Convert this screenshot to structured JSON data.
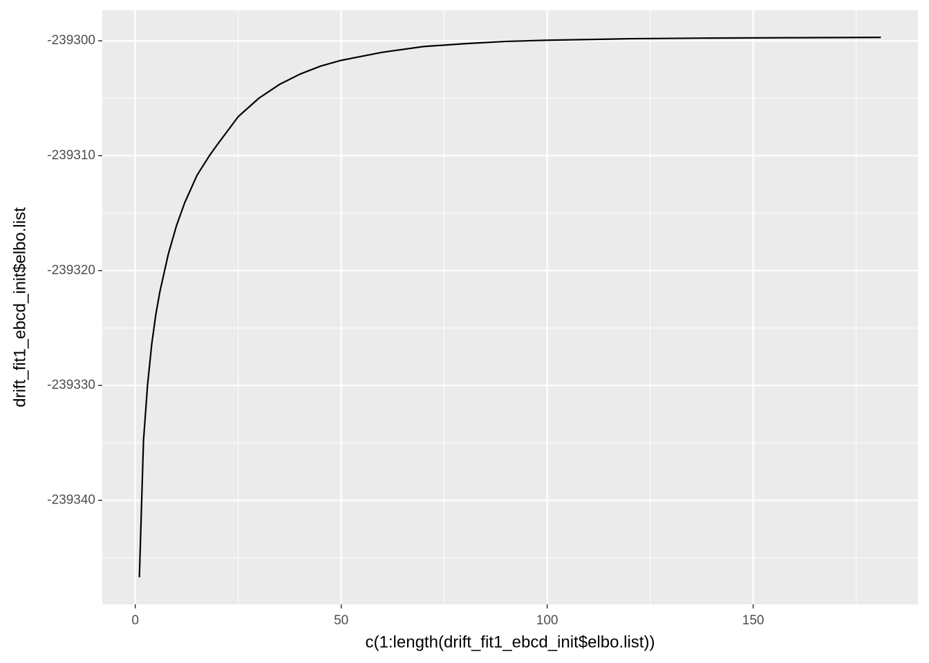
{
  "chart_data": {
    "type": "line",
    "x_label": "c(1:length(drift_fit1_ebcd_init$elbo.list))",
    "y_label": "drift_fit1_ebcd_init$elbo.list",
    "x": [
      1,
      2,
      3,
      4,
      5,
      6,
      8,
      10,
      12,
      15,
      18,
      20,
      25,
      30,
      35,
      40,
      45,
      50,
      60,
      70,
      80,
      90,
      100,
      120,
      140,
      160,
      181
    ],
    "series": [
      {
        "color": "#000000",
        "values": [
          -239346.7,
          -239334.8,
          -239329.9,
          -239326.4,
          -239323.8,
          -239321.8,
          -239318.6,
          -239316.1,
          -239314.1,
          -239311.7,
          -239310.0,
          -239309.0,
          -239306.6,
          -239305.0,
          -239303.8,
          -239302.9,
          -239302.2,
          -239301.7,
          -239301.0,
          -239300.5,
          -239300.25,
          -239300.05,
          -239299.95,
          -239299.82,
          -239299.76,
          -239299.73,
          -239299.7
        ]
      }
    ],
    "xlim": [
      -8,
      190
    ],
    "xticks": [
      0,
      50,
      100,
      150
    ],
    "xminor": [
      25,
      75,
      125,
      175
    ],
    "ylim": [
      -239349.05,
      -239297.35
    ],
    "yticks": [
      -239340,
      -239330,
      -239320,
      -239310,
      -239300
    ],
    "yminor": [
      -239345,
      -239335,
      -239325,
      -239315,
      -239305
    ],
    "grid": true
  }
}
